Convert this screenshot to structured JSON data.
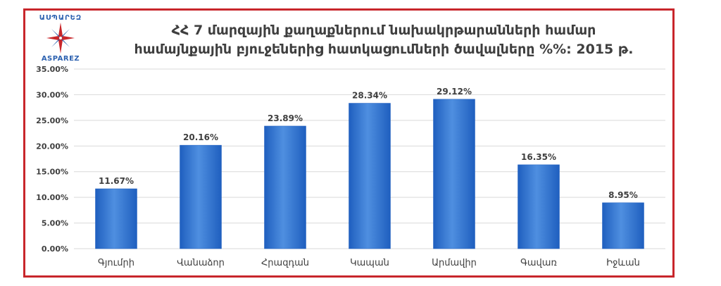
{
  "logo": {
    "top_text": "ԱՍՊԱՐԵԶ",
    "bottom_text": "ASPAREZ",
    "icon": "compass-star-icon"
  },
  "title_lines": [
    "ՀՀ 7 մարզային քաղաքներում նախակրթարանների համար",
    "համայնքային բյուջեներից հատկացումների ծավալները %%: 2015 թ."
  ],
  "colors": {
    "frame": "#c8262b",
    "bar_top": "#4f8fe0",
    "bar_bottom": "#1f5fbf",
    "grid": "#d9d9d9",
    "text": "#3f3f3f"
  },
  "chart_data": {
    "type": "bar",
    "categories": [
      "Գյումրի",
      "Վանաձոր",
      "Հրազդան",
      "Կապան",
      "Արմավիր",
      "Գավառ",
      "Իջևան"
    ],
    "values": [
      11.67,
      20.16,
      23.89,
      28.34,
      29.12,
      16.35,
      8.95
    ],
    "value_labels": [
      "11.67%",
      "20.16%",
      "23.89%",
      "28.34%",
      "29.12%",
      "16.35%",
      "8.95%"
    ],
    "y_ticks": [
      0,
      5,
      10,
      15,
      20,
      25,
      30,
      35
    ],
    "y_tick_labels": [
      "0.00%",
      "5.00%",
      "10.00%",
      "15.00%",
      "20.00%",
      "25.00%",
      "30.00%",
      "35.00%"
    ],
    "ylim": [
      0,
      35
    ],
    "grid": true,
    "legend": false
  }
}
